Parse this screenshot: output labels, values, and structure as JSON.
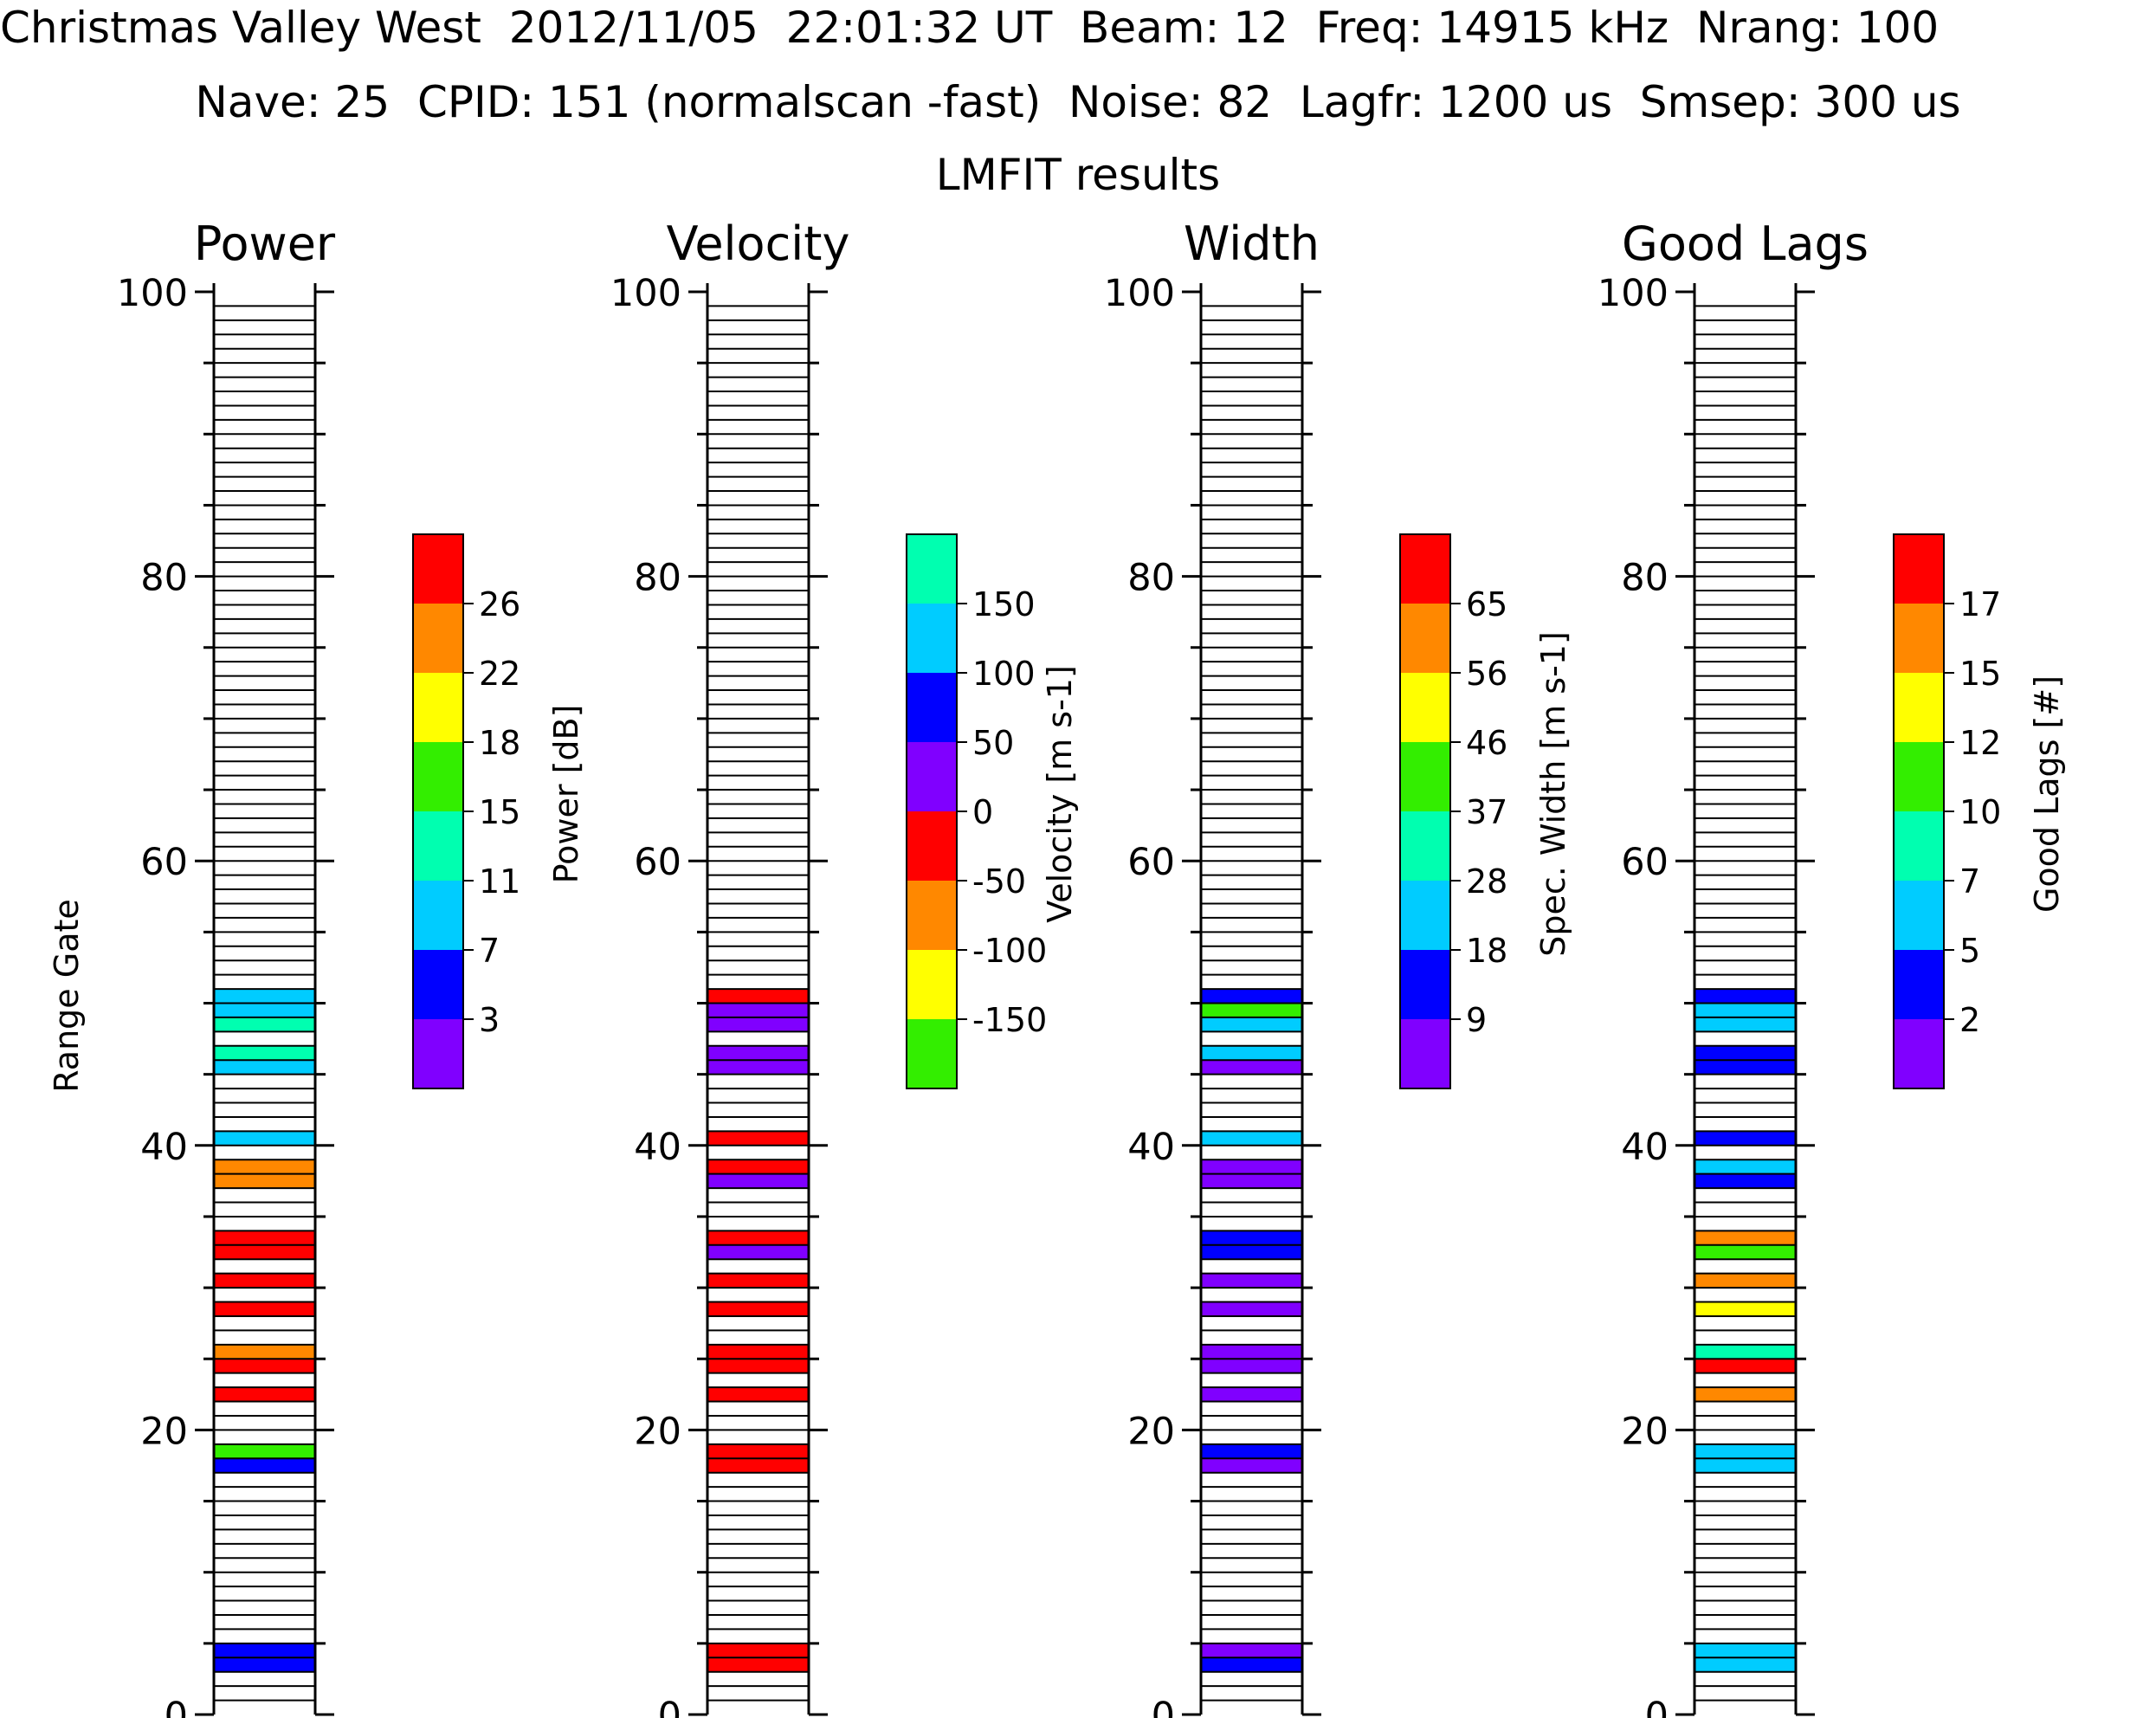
{
  "header": {
    "line1": "Christmas Valley West  2012/11/05  22:01:32 UT  Beam: 12  Freq: 14915 kHz  Nrang: 100",
    "line2": "Nave: 25  CPID: 151 (normalscan -fast)  Noise: 82  Lagfr: 1200 us  Smsep: 300 us",
    "line3": "LMFIT results"
  },
  "colors": {
    "purple": "#8000ff",
    "blue": "#0000ff",
    "cyan": "#00ccff",
    "teal": "#00ffb0",
    "green": "#33ee00",
    "yellow": "#ffff00",
    "orange": "#ff8800",
    "red": "#ff0000"
  },
  "chart_data": {
    "type": "heatmap",
    "y_label": "Range Gate",
    "ylim": [
      0,
      100
    ],
    "y_ticks": [
      "0",
      "20",
      "40",
      "60",
      "80",
      "100"
    ],
    "panels": [
      {
        "title": "Power",
        "colorbar_label": "Power [dB]",
        "colorbar_labels": [
          "3",
          "7",
          "11",
          "15",
          "18",
          "22",
          "26"
        ],
        "colorbar_colors": [
          "purple",
          "blue",
          "cyan",
          "teal",
          "green",
          "yellow",
          "orange",
          "red"
        ],
        "gates": [
          {
            "gate": 3,
            "color": "blue"
          },
          {
            "gate": 4,
            "color": "blue"
          },
          {
            "gate": 17,
            "color": "blue"
          },
          {
            "gate": 18,
            "color": "green"
          },
          {
            "gate": 22,
            "color": "red"
          },
          {
            "gate": 24,
            "color": "red"
          },
          {
            "gate": 25,
            "color": "orange"
          },
          {
            "gate": 28,
            "color": "red"
          },
          {
            "gate": 30,
            "color": "red"
          },
          {
            "gate": 32,
            "color": "red"
          },
          {
            "gate": 33,
            "color": "red"
          },
          {
            "gate": 37,
            "color": "orange"
          },
          {
            "gate": 38,
            "color": "orange"
          },
          {
            "gate": 40,
            "color": "cyan"
          },
          {
            "gate": 45,
            "color": "cyan"
          },
          {
            "gate": 46,
            "color": "teal"
          },
          {
            "gate": 48,
            "color": "teal"
          },
          {
            "gate": 49,
            "color": "cyan"
          },
          {
            "gate": 50,
            "color": "cyan"
          }
        ]
      },
      {
        "title": "Velocity",
        "colorbar_label": "Velocity [m s-1]",
        "colorbar_labels": [
          "-150",
          "-100",
          "-50",
          "0",
          "50",
          "100",
          "150"
        ],
        "colorbar_colors": [
          "green",
          "yellow",
          "orange",
          "red",
          "purple",
          "blue",
          "cyan",
          "teal"
        ],
        "gates": [
          {
            "gate": 3,
            "color": "red"
          },
          {
            "gate": 4,
            "color": "red"
          },
          {
            "gate": 17,
            "color": "red"
          },
          {
            "gate": 18,
            "color": "red"
          },
          {
            "gate": 22,
            "color": "red"
          },
          {
            "gate": 24,
            "color": "red"
          },
          {
            "gate": 25,
            "color": "red"
          },
          {
            "gate": 28,
            "color": "red"
          },
          {
            "gate": 30,
            "color": "red"
          },
          {
            "gate": 32,
            "color": "purple"
          },
          {
            "gate": 33,
            "color": "red"
          },
          {
            "gate": 37,
            "color": "purple"
          },
          {
            "gate": 38,
            "color": "red"
          },
          {
            "gate": 40,
            "color": "red"
          },
          {
            "gate": 45,
            "color": "purple"
          },
          {
            "gate": 46,
            "color": "purple"
          },
          {
            "gate": 48,
            "color": "purple"
          },
          {
            "gate": 49,
            "color": "purple"
          },
          {
            "gate": 50,
            "color": "red"
          }
        ]
      },
      {
        "title": "Width",
        "colorbar_label": "Spec. Width [m s-1]",
        "colorbar_labels": [
          "9",
          "18",
          "28",
          "37",
          "46",
          "56",
          "65"
        ],
        "colorbar_colors": [
          "purple",
          "blue",
          "cyan",
          "teal",
          "green",
          "yellow",
          "orange",
          "red"
        ],
        "gates": [
          {
            "gate": 3,
            "color": "blue"
          },
          {
            "gate": 4,
            "color": "purple"
          },
          {
            "gate": 17,
            "color": "purple"
          },
          {
            "gate": 18,
            "color": "blue"
          },
          {
            "gate": 22,
            "color": "purple"
          },
          {
            "gate": 24,
            "color": "purple"
          },
          {
            "gate": 25,
            "color": "purple"
          },
          {
            "gate": 28,
            "color": "purple"
          },
          {
            "gate": 30,
            "color": "purple"
          },
          {
            "gate": 32,
            "color": "blue"
          },
          {
            "gate": 33,
            "color": "blue"
          },
          {
            "gate": 37,
            "color": "purple"
          },
          {
            "gate": 38,
            "color": "purple"
          },
          {
            "gate": 40,
            "color": "cyan"
          },
          {
            "gate": 45,
            "color": "purple"
          },
          {
            "gate": 46,
            "color": "cyan"
          },
          {
            "gate": 48,
            "color": "cyan"
          },
          {
            "gate": 49,
            "color": "green"
          },
          {
            "gate": 50,
            "color": "blue"
          }
        ]
      },
      {
        "title": "Good Lags",
        "colorbar_label": "Good Lags [#]",
        "colorbar_labels": [
          "2",
          "5",
          "7",
          "10",
          "12",
          "15",
          "17"
        ],
        "colorbar_colors": [
          "purple",
          "blue",
          "cyan",
          "teal",
          "green",
          "yellow",
          "orange",
          "red"
        ],
        "gates": [
          {
            "gate": 3,
            "color": "cyan"
          },
          {
            "gate": 4,
            "color": "cyan"
          },
          {
            "gate": 17,
            "color": "cyan"
          },
          {
            "gate": 18,
            "color": "cyan"
          },
          {
            "gate": 22,
            "color": "orange"
          },
          {
            "gate": 24,
            "color": "red"
          },
          {
            "gate": 25,
            "color": "teal"
          },
          {
            "gate": 28,
            "color": "yellow"
          },
          {
            "gate": 30,
            "color": "orange"
          },
          {
            "gate": 32,
            "color": "green"
          },
          {
            "gate": 33,
            "color": "orange"
          },
          {
            "gate": 37,
            "color": "blue"
          },
          {
            "gate": 38,
            "color": "cyan"
          },
          {
            "gate": 40,
            "color": "blue"
          },
          {
            "gate": 45,
            "color": "blue"
          },
          {
            "gate": 46,
            "color": "blue"
          },
          {
            "gate": 48,
            "color": "cyan"
          },
          {
            "gate": 49,
            "color": "cyan"
          },
          {
            "gate": 50,
            "color": "blue"
          }
        ]
      }
    ]
  }
}
